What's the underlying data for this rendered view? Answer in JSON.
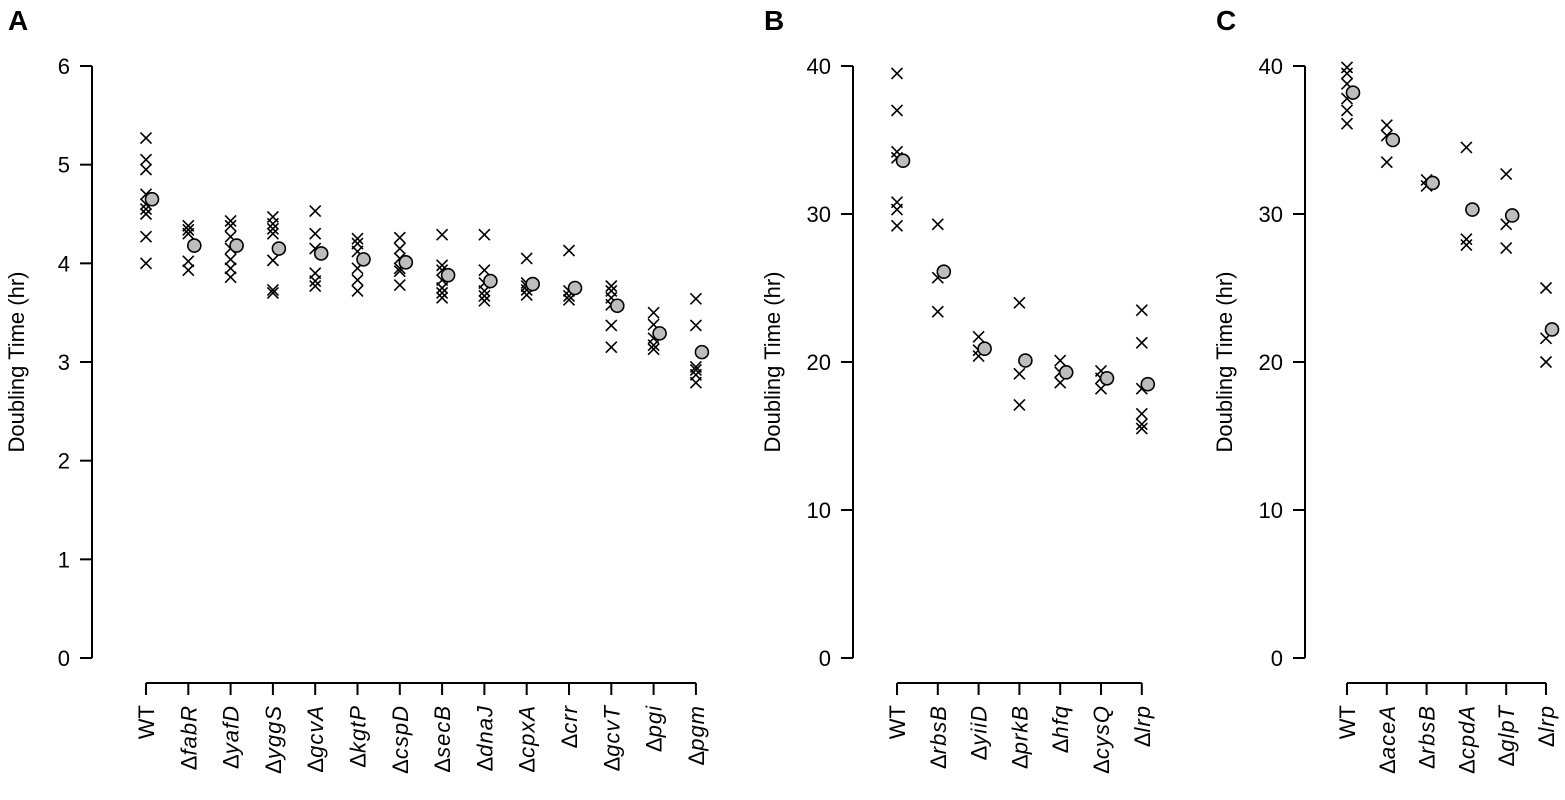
{
  "chart_data": [
    {
      "type": "scatter",
      "panel": "A",
      "ylabel": "Doubling Time (hr)",
      "ylim": [
        0,
        6
      ],
      "yticks": [
        "0",
        "1",
        "2",
        "3",
        "4",
        "5",
        "6"
      ],
      "categories": [
        {
          "prefix": "",
          "name": "WT"
        },
        {
          "prefix": "Δ",
          "name": "fabR"
        },
        {
          "prefix": "Δ",
          "name": "yafD"
        },
        {
          "prefix": "Δ",
          "name": "yggS"
        },
        {
          "prefix": "Δ",
          "name": "gcvA"
        },
        {
          "prefix": "Δ",
          "name": "kgtP"
        },
        {
          "prefix": "Δ",
          "name": "cspD"
        },
        {
          "prefix": "Δ",
          "name": "secB"
        },
        {
          "prefix": "Δ",
          "name": "dnaJ"
        },
        {
          "prefix": "Δ",
          "name": "cpxA"
        },
        {
          "prefix": "Δ",
          "name": "crr"
        },
        {
          "prefix": "Δ",
          "name": "gcvT"
        },
        {
          "prefix": "Δ",
          "name": "pgi"
        },
        {
          "prefix": "Δ",
          "name": "pgm"
        }
      ],
      "replicates": [
        [
          5.27,
          5.05,
          4.95,
          4.7,
          4.6,
          4.55,
          4.5,
          4.27,
          4.0
        ],
        [
          4.38,
          4.34,
          4.3,
          4.02,
          3.93
        ],
        [
          4.43,
          4.38,
          4.27,
          4.15,
          4.04,
          3.95,
          3.86
        ],
        [
          4.47,
          4.4,
          4.35,
          4.3,
          4.03,
          3.73,
          3.7
        ],
        [
          4.53,
          4.3,
          4.15,
          3.9,
          3.82,
          3.77
        ],
        [
          4.25,
          4.2,
          4.12,
          3.95,
          3.83,
          3.72
        ],
        [
          4.26,
          4.15,
          4.05,
          3.95,
          3.92,
          3.78
        ],
        [
          4.29,
          3.98,
          3.93,
          3.83,
          3.75,
          3.7,
          3.65
        ],
        [
          4.29,
          3.93,
          3.8,
          3.72,
          3.67,
          3.62
        ],
        [
          4.05,
          3.8,
          3.77,
          3.73,
          3.68
        ],
        [
          4.13,
          3.72,
          3.67,
          3.63
        ],
        [
          3.77,
          3.72,
          3.65,
          3.58,
          3.37,
          3.15
        ],
        [
          3.5,
          3.38,
          3.24,
          3.17,
          3.13
        ],
        [
          3.64,
          3.37,
          2.95,
          2.92,
          2.87,
          2.79
        ]
      ],
      "means": [
        4.65,
        4.18,
        4.18,
        4.15,
        4.1,
        4.04,
        4.01,
        3.88,
        3.82,
        3.79,
        3.75,
        3.57,
        3.29,
        3.1
      ]
    },
    {
      "type": "scatter",
      "panel": "B",
      "ylabel": "Doubling Time (hr)",
      "ylim": [
        0,
        40
      ],
      "yticks": [
        "0",
        "10",
        "20",
        "30",
        "40"
      ],
      "categories": [
        {
          "prefix": "",
          "name": "WT"
        },
        {
          "prefix": "Δ",
          "name": "rbsB"
        },
        {
          "prefix": "Δ",
          "name": "yiiD"
        },
        {
          "prefix": "Δ",
          "name": "prkB"
        },
        {
          "prefix": "Δ",
          "name": "hfq"
        },
        {
          "prefix": "Δ",
          "name": "cysQ"
        },
        {
          "prefix": "Δ",
          "name": "lrp"
        }
      ],
      "replicates": [
        [
          39.5,
          37.0,
          34.2,
          33.8,
          30.8,
          30.3,
          29.2
        ],
        [
          29.3,
          25.7,
          23.4
        ],
        [
          21.7,
          20.8,
          20.4
        ],
        [
          24.0,
          19.2,
          17.1
        ],
        [
          20.1,
          19.3,
          18.6
        ],
        [
          19.4,
          18.9,
          18.2
        ],
        [
          23.5,
          21.3,
          18.2,
          16.5,
          15.8,
          15.5
        ]
      ],
      "means": [
        33.6,
        26.1,
        20.9,
        20.1,
        19.3,
        18.9,
        18.5
      ]
    },
    {
      "type": "scatter",
      "panel": "C",
      "ylabel": "Doubling Time (hr)",
      "ylim": [
        0,
        40
      ],
      "yticks": [
        "0",
        "10",
        "20",
        "30",
        "40"
      ],
      "categories": [
        {
          "prefix": "",
          "name": "WT"
        },
        {
          "prefix": "Δ",
          "name": "aceA"
        },
        {
          "prefix": "Δ",
          "name": "rbsB"
        },
        {
          "prefix": "Δ",
          "name": "cpdA"
        },
        {
          "prefix": "Δ",
          "name": "glpT"
        },
        {
          "prefix": "Δ",
          "name": "lrp"
        }
      ],
      "replicates": [
        [
          39.9,
          39.5,
          38.8,
          37.8,
          37.0,
          36.1
        ],
        [
          36.0,
          35.3,
          33.5
        ],
        [
          32.3,
          31.9
        ],
        [
          34.5,
          28.3,
          27.9
        ],
        [
          32.7,
          29.3,
          27.7
        ],
        [
          25.0,
          21.6,
          20.0
        ]
      ],
      "means": [
        38.2,
        35.0,
        32.1,
        30.3,
        29.9,
        22.2
      ]
    }
  ]
}
